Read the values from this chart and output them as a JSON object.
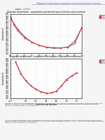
{
  "bg_color": "#f5f5f5",
  "page_bg": "#ffffff",
  "header_line": "Diagrama temperatura-composición experimental para el sistema",
  "header_color": "#4466bb",
  "subheader": "cetona - metanol",
  "subheader_color": "#333333",
  "chart1": {
    "title": "Diagrama temperatura - composición experimental para el sistema cetona-metanol",
    "xlabel": "Fracción molar Acetona",
    "ylabel": "Temperatura K",
    "x_liq": [
      0.0,
      0.05,
      0.1,
      0.15,
      0.2,
      0.25,
      0.3,
      0.4,
      0.5,
      0.6,
      0.7,
      0.8,
      0.9,
      1.0
    ],
    "y_liq": [
      337.5,
      332.0,
      328.0,
      324.5,
      321.5,
      319.0,
      317.0,
      314.5,
      313.0,
      312.0,
      312.2,
      313.0,
      318.0,
      329.0
    ],
    "x_vap": [
      0.0,
      0.05,
      0.1,
      0.2,
      0.3,
      0.4,
      0.5,
      0.6,
      0.7,
      0.8,
      0.9,
      1.0
    ],
    "y_vap": [
      337.5,
      331.0,
      326.5,
      320.5,
      317.0,
      314.5,
      313.0,
      312.5,
      312.3,
      312.8,
      316.0,
      329.0
    ],
    "liq_color": "#4472c4",
    "vap_color": "#ff2222",
    "liq_marker": "o",
    "vap_marker": "s",
    "liq_label": "Liquido",
    "vap_label": "Vapor",
    "ylim": [
      308,
      340
    ],
    "xlim": [
      0.0,
      1.0
    ],
    "xticks": [
      0.0,
      0.1,
      0.2,
      0.3,
      0.4,
      0.5,
      0.6,
      0.7,
      0.8,
      0.9,
      1.0
    ],
    "ytick_labels": [
      "308",
      "310",
      "312",
      "314",
      "316",
      "318",
      "320",
      "322",
      "324",
      "326",
      "328",
      "330",
      "332",
      "334",
      "336",
      "338",
      "340"
    ],
    "yticks": [
      308,
      310,
      312,
      314,
      316,
      318,
      320,
      322,
      324,
      326,
      328,
      330,
      332,
      334,
      336,
      338,
      340
    ]
  },
  "chart2": {
    "title": "Diagrama temperatura - composición teórico para el sistema cetona-metanol",
    "xlabel": "Fracción molar Acetona",
    "ylabel": "Temperatura K",
    "x_liq": [
      0.0,
      0.1,
      0.2,
      0.3,
      0.4,
      0.5,
      0.6,
      0.7,
      0.8,
      0.9,
      1.0,
      1.1,
      1.2
    ],
    "y_liq": [
      337.5,
      328.0,
      322.0,
      318.0,
      315.0,
      313.0,
      312.0,
      312.2,
      313.5,
      318.0,
      323.0,
      326.0,
      328.5
    ],
    "x_vap": [
      0.0,
      0.1,
      0.2,
      0.3,
      0.4,
      0.5,
      0.6,
      0.7,
      0.8,
      0.9,
      1.0,
      1.1,
      1.2
    ],
    "y_vap": [
      337.5,
      328.0,
      322.0,
      318.0,
      315.0,
      313.0,
      312.0,
      312.2,
      313.5,
      318.0,
      323.0,
      326.0,
      328.5
    ],
    "liq_color": "#4472c4",
    "vap_color": "#ff2222",
    "liq_marker": "o",
    "vap_marker": "s",
    "liq_label": "Liquido",
    "vap_label": "Vapor",
    "ylim": [
      308,
      340
    ],
    "xlim": [
      -0.1,
      1.3
    ],
    "xticks": [
      -0.1,
      0.2,
      0.4,
      0.6,
      0.8,
      1.0,
      1.2
    ],
    "yticks": [
      308,
      310,
      312,
      314,
      316,
      318,
      320,
      322,
      324,
      326,
      328,
      330,
      332,
      334,
      336,
      338,
      340
    ]
  },
  "para1": "Reducir la presion a la temperatura corriente de una mezcla de acetona una destilacion para la mas mandemos se destita a presion constante estando la solucion a analisis de la destacion desde este punto de viste genera los diagramas temperatura - composicion.",
  "para2": "La ley de Raoult establece que la presion parcial de un disolvente en una disolucion A esta dada por la presion de vapor del disolvente puro multiplicada por la fraccion molar del disolvente (P = x*P^sat y en la disolucion cuando se cumple la ley de Raoult disolvente no"
}
